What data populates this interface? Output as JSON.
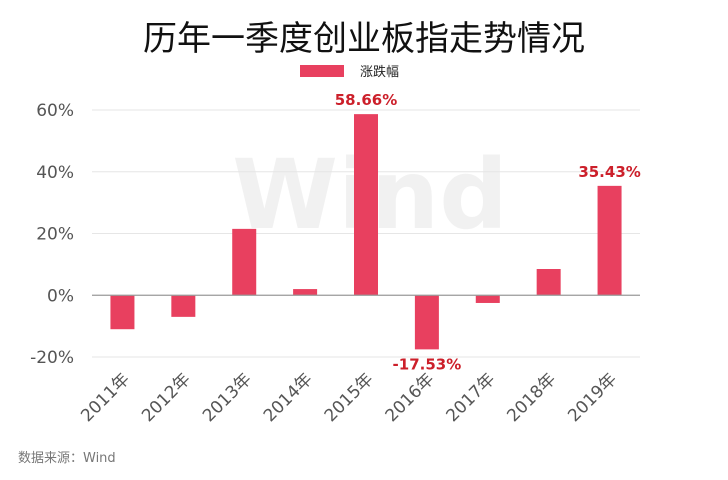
{
  "chart_data": {
    "type": "bar",
    "title": "历年一季度创业板指走势情况",
    "legend": [
      "涨跌幅"
    ],
    "legend_position": "top-center",
    "categories": [
      "2011年",
      "2012年",
      "2013年",
      "2014年",
      "2015年",
      "2016年",
      "2017年",
      "2018年",
      "2019年"
    ],
    "series": [
      {
        "name": "涨跌幅",
        "values": [
          -11.0,
          -7.0,
          21.5,
          2.0,
          58.66,
          -17.53,
          -2.5,
          8.5,
          35.43
        ],
        "color": "#e8405f"
      }
    ],
    "y_ticks": [
      "60%",
      "40%",
      "20%",
      "0%",
      "-20%"
    ],
    "y_tick_values": [
      60,
      40,
      20,
      0,
      -20
    ],
    "ylim": [
      -20,
      60
    ],
    "grid": true,
    "data_labels": [
      {
        "category_index": 4,
        "text": "58.66%"
      },
      {
        "category_index": 5,
        "text": "-17.53%"
      },
      {
        "category_index": 8,
        "text": "35.43%"
      }
    ],
    "label_color": "#cc1f2a",
    "watermark": "Wind",
    "source": "数据来源：Wind"
  }
}
